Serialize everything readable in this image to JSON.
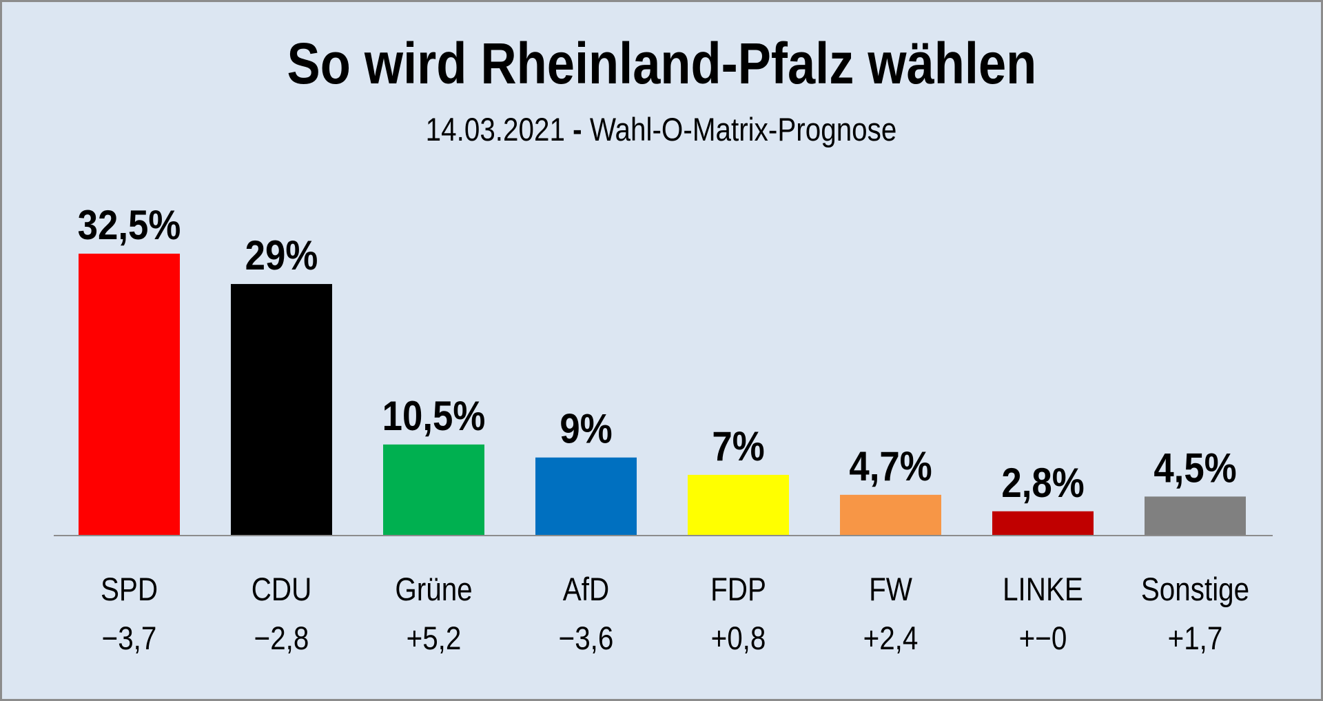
{
  "header": {
    "title": "So wird Rheinland-Pfalz wählen",
    "subtitle_date": "14.03.2021",
    "subtitle_separator": "-",
    "subtitle_text": "Wahl-O-Matrix-Prognose"
  },
  "colors": {
    "background": "#dce6f2",
    "axis": "#8c8c8c"
  },
  "chart_data": {
    "type": "bar",
    "title": "So wird Rheinland-Pfalz wählen",
    "subtitle": "14.03.2021 - Wahl-O-Matrix-Prognose",
    "xlabel": "",
    "ylabel": "",
    "ylim": [
      0,
      32.5
    ],
    "grid": false,
    "legend": "none",
    "categories": [
      "SPD",
      "CDU",
      "Grüne",
      "AfD",
      "FDP",
      "FW",
      "LINKE",
      "Sonstige"
    ],
    "values": [
      32.5,
      29,
      10.5,
      9,
      7,
      4.7,
      2.8,
      4.5
    ],
    "value_labels": [
      "32,5%",
      "29%",
      "10,5%",
      "9%",
      "7%",
      "4,7%",
      "2,8%",
      "4,5%"
    ],
    "changes": [
      "−3,7",
      "−2,8",
      "+5,2",
      "−3,6",
      "+0,8",
      "+2,4",
      "+−0",
      "+1,7"
    ],
    "bar_colors": [
      "#ff0000",
      "#000000",
      "#00b050",
      "#0070c0",
      "#ffff00",
      "#f79646",
      "#c00000",
      "#808080"
    ]
  }
}
